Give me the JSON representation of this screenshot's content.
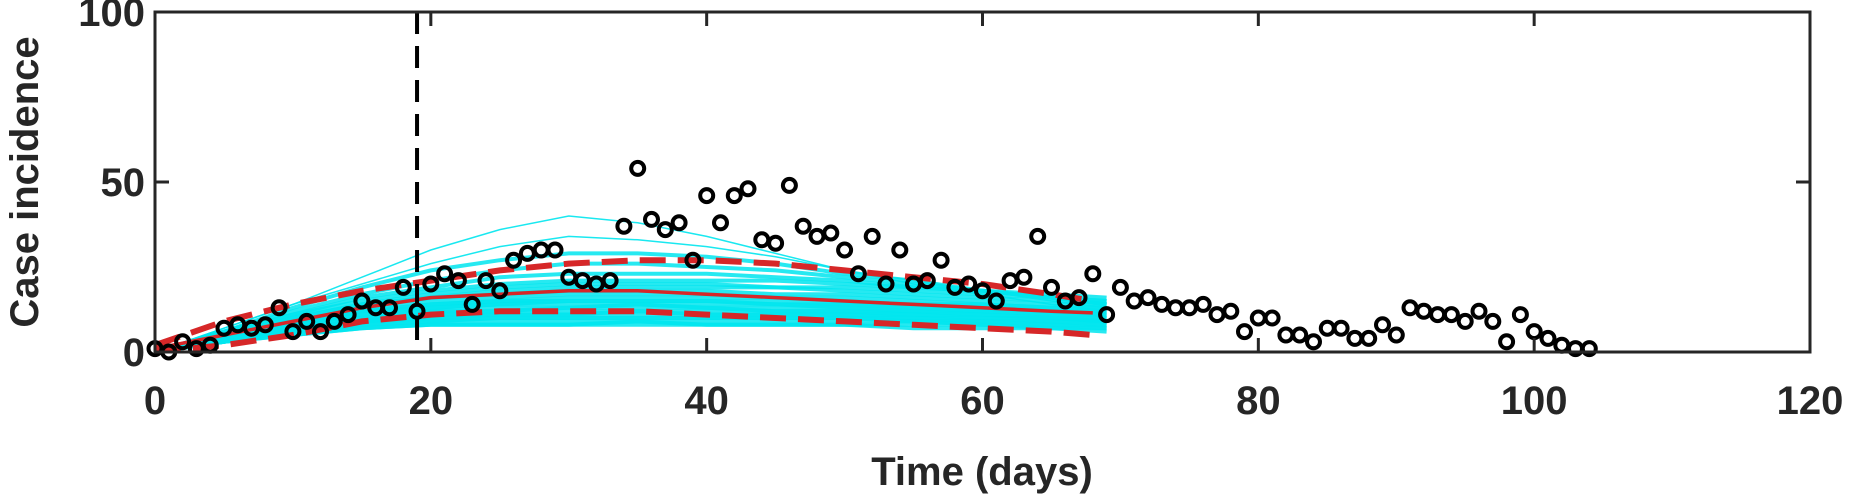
{
  "chart_data": {
    "type": "scatter",
    "title": "",
    "xlabel": "Time (days)",
    "ylabel": "Case incidence",
    "xlim": [
      0,
      120
    ],
    "ylim": [
      0,
      100
    ],
    "xticks": [
      0,
      20,
      40,
      60,
      80,
      100,
      120
    ],
    "yticks": [
      0,
      50,
      100
    ],
    "grid": false,
    "legend": "none",
    "vertical_marker_x": 19,
    "colors": {
      "observed": "#000000",
      "fit_mean": "#d62728",
      "fit_bounds": "#d62728",
      "ensemble": "#00e5ee",
      "marker_line": "#000000",
      "axes": "#262626"
    },
    "series": [
      {
        "kind": "observed",
        "x": [
          0,
          1,
          2,
          3,
          4,
          5,
          6,
          7,
          8,
          9,
          10,
          11,
          12,
          13,
          14,
          15,
          16,
          17,
          18,
          19,
          20,
          21,
          22,
          23,
          24,
          25,
          26,
          27,
          28,
          29,
          30,
          31,
          32,
          33,
          34,
          35,
          36,
          37,
          38,
          39,
          40,
          41,
          42,
          43,
          44,
          45,
          46,
          47,
          48,
          49,
          50,
          51,
          52,
          53,
          54,
          55,
          56,
          57,
          58,
          59,
          60,
          61,
          62,
          63,
          64,
          65,
          66,
          67,
          68,
          69,
          70,
          71,
          72,
          73,
          74,
          75,
          76,
          77,
          78,
          79,
          80,
          81,
          82,
          83,
          84,
          85,
          86,
          87,
          88,
          89,
          90,
          91,
          92,
          93,
          94,
          95,
          96,
          97,
          98,
          99,
          100,
          101,
          102,
          103,
          104
        ],
        "y": [
          1,
          0,
          3,
          1,
          2,
          7,
          8,
          7,
          8,
          13,
          6,
          9,
          6,
          9,
          11,
          15,
          13,
          13,
          19,
          12,
          20,
          23,
          21,
          14,
          21,
          18,
          27,
          29,
          30,
          30,
          22,
          21,
          20,
          21,
          37,
          54,
          39,
          36,
          38,
          27,
          46,
          38,
          46,
          48,
          33,
          32,
          49,
          37,
          34,
          35,
          30,
          23,
          34,
          20,
          30,
          20,
          21,
          27,
          19,
          20,
          18,
          15,
          21,
          22,
          34,
          19,
          15,
          16,
          23,
          11,
          19,
          15,
          16,
          14,
          13,
          13,
          14,
          11,
          12,
          6,
          10,
          10,
          5,
          5,
          3,
          7,
          7,
          4,
          4,
          8,
          5,
          13,
          12,
          11,
          11,
          9,
          12,
          9,
          3,
          11,
          6,
          4,
          2,
          1,
          1
        ]
      },
      {
        "kind": "fit_mean",
        "x": [
          0,
          5,
          10,
          15,
          20,
          25,
          30,
          35,
          40,
          45,
          50,
          55,
          60,
          65,
          68
        ],
        "y": [
          1,
          5,
          9,
          13,
          16,
          17,
          18,
          18,
          17,
          16,
          15,
          14,
          13,
          12,
          11.5
        ]
      },
      {
        "kind": "fit_upper",
        "x": [
          0,
          5,
          10,
          15,
          20,
          25,
          30,
          35,
          40,
          45,
          50,
          55,
          60,
          65,
          68
        ],
        "y": [
          2,
          9,
          14,
          18,
          21,
          24,
          26,
          27,
          27,
          26,
          24,
          22,
          20,
          17,
          15
        ]
      },
      {
        "kind": "fit_lower",
        "x": [
          0,
          5,
          10,
          15,
          20,
          25,
          30,
          35,
          40,
          45,
          50,
          55,
          60,
          65,
          68
        ],
        "y": [
          0,
          2,
          5,
          9,
          11,
          12,
          12,
          12,
          11,
          10,
          9,
          8,
          7,
          6,
          5
        ]
      }
    ],
    "ensemble_curves": [
      [
        0,
        7,
        14,
        22,
        30,
        36,
        40,
        38,
        34,
        29,
        24,
        20,
        17,
        14,
        12
      ],
      [
        0,
        7,
        14,
        20,
        26,
        31,
        34,
        33,
        31,
        28,
        24,
        21,
        18,
        15,
        13
      ],
      [
        0,
        6,
        13,
        19,
        24,
        27,
        29,
        29,
        28,
        26,
        23,
        21,
        18,
        16,
        14
      ],
      [
        0,
        6,
        12,
        17,
        21,
        24,
        26,
        26,
        25,
        24,
        22,
        20,
        18,
        16,
        14
      ],
      [
        0,
        6,
        11,
        16,
        19,
        22,
        23,
        23,
        23,
        22,
        21,
        19,
        18,
        16,
        15
      ],
      [
        0,
        6,
        11,
        15,
        18,
        20,
        21,
        21,
        21,
        21,
        20,
        19,
        18,
        17,
        16
      ],
      [
        0,
        5,
        10,
        14,
        17,
        19,
        20,
        20,
        20,
        19,
        19,
        18,
        17,
        16,
        15
      ],
      [
        0,
        5,
        10,
        14,
        16,
        18,
        19,
        19,
        19,
        19,
        18,
        17,
        16,
        15,
        14
      ],
      [
        0,
        5,
        9,
        13,
        16,
        17,
        18,
        18,
        18,
        17,
        17,
        16,
        15,
        14,
        13
      ],
      [
        0,
        5,
        9,
        13,
        15,
        16,
        17,
        17,
        17,
        16,
        16,
        15,
        14,
        13,
        13
      ],
      [
        0,
        5,
        9,
        12,
        14,
        15,
        16,
        16,
        16,
        16,
        15,
        14,
        14,
        13,
        12
      ],
      [
        0,
        5,
        9,
        12,
        14,
        15,
        15,
        15,
        15,
        15,
        14,
        14,
        13,
        12,
        12
      ],
      [
        0,
        4,
        8,
        12,
        13,
        14,
        15,
        15,
        15,
        14,
        14,
        13,
        13,
        12,
        11
      ],
      [
        0,
        4,
        8,
        11,
        13,
        14,
        14,
        14,
        14,
        14,
        13,
        13,
        12,
        11,
        11
      ],
      [
        0,
        4,
        8,
        11,
        12,
        13,
        13,
        14,
        13,
        13,
        13,
        12,
        12,
        11,
        10
      ],
      [
        0,
        4,
        8,
        10,
        12,
        12,
        13,
        13,
        13,
        12,
        12,
        12,
        11,
        10,
        10
      ],
      [
        0,
        4,
        7,
        10,
        11,
        12,
        12,
        12,
        12,
        12,
        12,
        11,
        11,
        10,
        9
      ],
      [
        0,
        4,
        7,
        9,
        11,
        11,
        11,
        12,
        11,
        11,
        11,
        11,
        10,
        10,
        9
      ],
      [
        0,
        3,
        7,
        9,
        10,
        11,
        11,
        11,
        11,
        11,
        11,
        10,
        10,
        9,
        9
      ],
      [
        0,
        3,
        6,
        9,
        10,
        10,
        10,
        10,
        10,
        10,
        10,
        10,
        9,
        9,
        8
      ],
      [
        0,
        3,
        6,
        8,
        9,
        10,
        10,
        10,
        10,
        10,
        10,
        9,
        9,
        8,
        8
      ],
      [
        0,
        3,
        6,
        8,
        9,
        9,
        9,
        9,
        9,
        9,
        9,
        9,
        8,
        8,
        7
      ],
      [
        0,
        3,
        5,
        7,
        8,
        8,
        8,
        9,
        8,
        8,
        8,
        8,
        8,
        7,
        7
      ],
      [
        0,
        3,
        5,
        7,
        8,
        8,
        8,
        8,
        8,
        8,
        8,
        7,
        7,
        7,
        6
      ]
    ],
    "ensemble_x": [
      0,
      5,
      10,
      15,
      20,
      25,
      30,
      35,
      40,
      45,
      50,
      55,
      60,
      65,
      69
    ]
  }
}
